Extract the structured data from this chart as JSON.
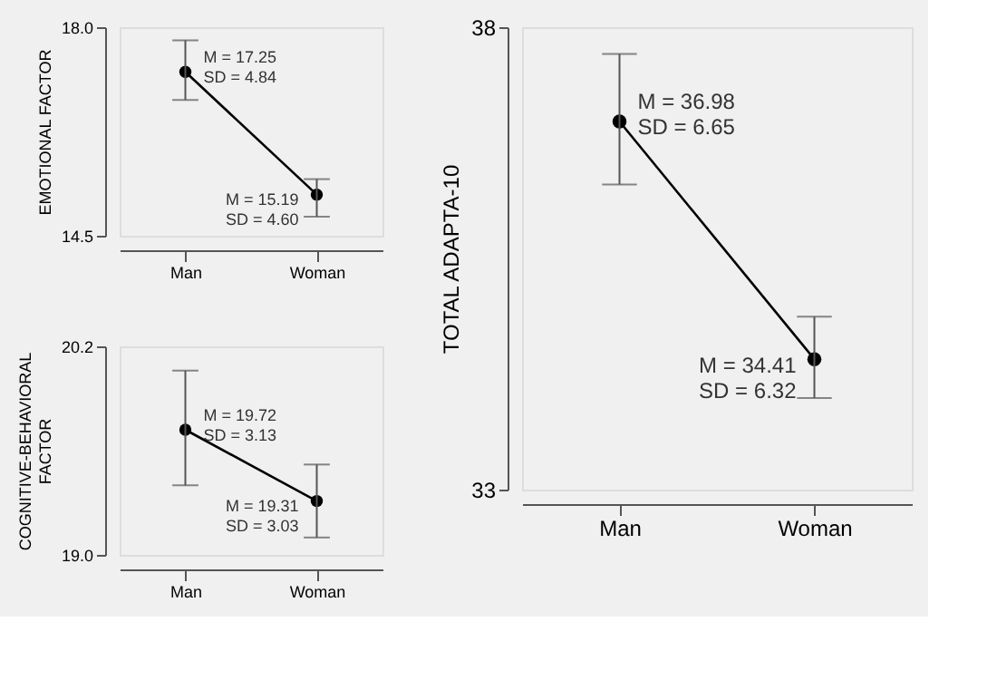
{
  "chart_data": [
    {
      "type": "line",
      "ylabel": "EMOTIONAL FACTOR",
      "categories": [
        "Man",
        "Woman"
      ],
      "marker": "circle",
      "grid": false,
      "series": [
        {
          "color": "#000000",
          "values": [
            17.25,
            15.19
          ],
          "errors": [
            [
              16.78,
              17.78
            ],
            [
              14.82,
              15.45
            ]
          ]
        }
      ],
      "ylim": [
        14.5,
        18.0
      ],
      "yticks": [
        {
          "value": 14.5,
          "label": "14.5"
        },
        {
          "value": 18.0,
          "label": "18.0"
        }
      ],
      "annotations": [
        {
          "text": "M = 17.25\nSD = 4.84",
          "x": "Man",
          "y": 17.25
        },
        {
          "text": "M = 15.19\nSD = 4.60",
          "x": "Woman",
          "y": 15.19
        }
      ]
    },
    {
      "type": "line",
      "ylabel": "COGNITIVE-BEHAVIORAL\nFACTOR",
      "categories": [
        "Man",
        "Woman"
      ],
      "marker": "circle",
      "grid": false,
      "series": [
        {
          "color": "#000000",
          "values": [
            19.72,
            19.31
          ],
          "errors": [
            [
              19.4,
              20.06
            ],
            [
              19.1,
              19.52
            ]
          ]
        }
      ],
      "ylim": [
        19.0,
        20.2
      ],
      "yticks": [
        {
          "value": 19.0,
          "label": "19.0"
        },
        {
          "value": 20.2,
          "label": "20.2"
        }
      ],
      "annotations": [
        {
          "text": "M = 19.72\nSD = 3.13",
          "x": "Man",
          "y": 19.72
        },
        {
          "text": "M = 19.31\nSD = 3.03",
          "x": "Woman",
          "y": 19.31
        }
      ]
    },
    {
      "type": "line",
      "ylabel": "TOTAL ADAPTA-10",
      "categories": [
        "Man",
        "Woman"
      ],
      "marker": "circle",
      "grid": false,
      "series": [
        {
          "color": "#000000",
          "values": [
            36.98,
            34.41
          ],
          "errors": [
            [
              36.3,
              37.71
            ],
            [
              33.99,
              34.87
            ]
          ]
        }
      ],
      "ylim": [
        33,
        38
      ],
      "yticks": [
        33,
        38
      ],
      "annotations": [
        {
          "text": "M = 36.98\nSD = 6.65",
          "x": "Man",
          "y": 36.98
        },
        {
          "text": "M = 34.41\nSD = 6.32",
          "x": "Woman",
          "y": 34.41
        }
      ]
    }
  ]
}
